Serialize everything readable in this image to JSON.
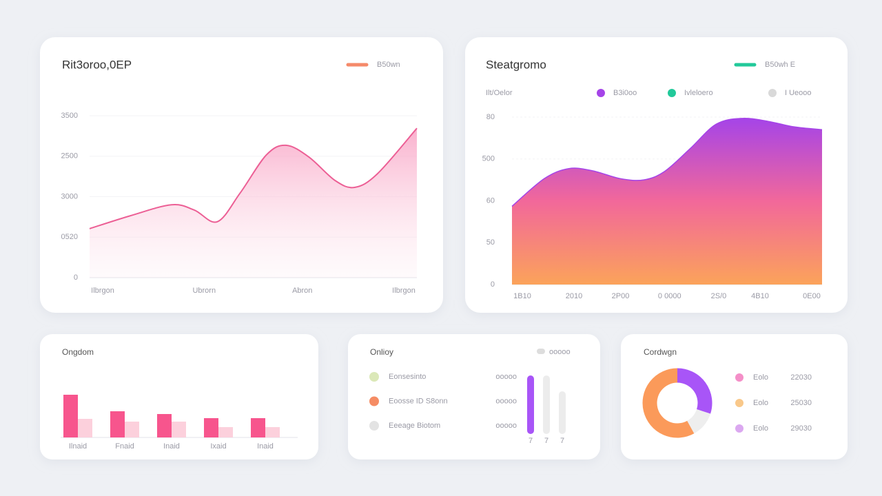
{
  "chart_data": [
    {
      "type": "line",
      "title": "Rit3oroo,0EP",
      "series": [
        {
          "name": "B50wn",
          "color": "#ec5f95",
          "legend_color": "#f58a6a",
          "values": [
            1210,
            1530,
            1800,
            1670,
            1380,
            2090,
            3030,
            3270,
            2980,
            2400,
            2230,
            2570,
            3690
          ]
        }
      ],
      "x": [
        0,
        1.25,
        2.5,
        3.2,
        3.9,
        4.6,
        5.4,
        6,
        6.7,
        7.5,
        8.1,
        8.8,
        10
      ],
      "xlim": [
        0,
        10
      ],
      "xticks": [
        {
          "value": 0.4,
          "label": "Ilbrgon"
        },
        {
          "value": 3.5,
          "label": "Ubrorn"
        },
        {
          "value": 6.5,
          "label": "Abron"
        },
        {
          "value": 9.6,
          "label": "Ilbrgon"
        }
      ],
      "ylim": [
        0,
        4000
      ],
      "yticks": [
        0,
        {
          "value": 1000,
          "label": "0520"
        },
        {
          "value": 2000,
          "label": "3000"
        },
        {
          "value": 3000,
          "label": "2500"
        },
        {
          "value": 4000,
          "label": "3500"
        }
      ]
    },
    {
      "type": "area",
      "title": "Steatgromo",
      "y_label": "Ilt/Oelor",
      "series": [
        {
          "name": "B50wh E",
          "color": "#22c99a",
          "values": [
            187,
            253,
            277,
            272,
            253,
            250,
            270,
            325,
            383,
            397,
            390,
            377,
            370
          ]
        }
      ],
      "gradient": [
        "#a544e8",
        "#f2689a",
        "#fba35a"
      ],
      "legend": [
        {
          "name": "B3i0oo",
          "color": "#a544e8"
        },
        {
          "name": "Ivleloero",
          "color": "#22c99a"
        },
        {
          "name": "I Ueooo",
          "color": "#d9d9d9"
        }
      ],
      "x": [
        0,
        1.25,
        2.2,
        3.1,
        4.2,
        5.1,
        5.9,
        6.9,
        7.9,
        8.9,
        9.9,
        10.9,
        12
      ],
      "xlim": [
        0,
        12
      ],
      "xticks": [
        {
          "value": 0.4,
          "label": "1B10"
        },
        {
          "value": 2.4,
          "label": "2010"
        },
        {
          "value": 4.2,
          "label": "2P00"
        },
        {
          "value": 6.1,
          "label": "0 0000"
        },
        {
          "value": 8.0,
          "label": "2S/0"
        },
        {
          "value": 9.6,
          "label": "4B10"
        },
        {
          "value": 11.6,
          "label": "0E00"
        }
      ],
      "ylim": [
        0,
        400
      ],
      "yticks": [
        0,
        {
          "value": 100,
          "label": "50"
        },
        {
          "value": 200,
          "label": "60"
        },
        {
          "value": 300,
          "label": "500"
        },
        {
          "value": 400,
          "label": "80"
        }
      ]
    },
    {
      "type": "grouped-bar",
      "title": "Ongdom",
      "categories": [
        "Ilnaid",
        "Fnaid",
        "Inaid",
        "Ixaid",
        "Inaid"
      ],
      "series": [
        {
          "color": "#f7558d",
          "values": [
            62,
            38,
            34,
            28,
            28
          ]
        },
        {
          "color": "#fcd0dc",
          "values": [
            27,
            23,
            23,
            15,
            15
          ]
        }
      ]
    },
    {
      "type": "bar",
      "title": "Onlioy",
      "toggle": "ooooo",
      "items": [
        {
          "label": "Eonsesinto",
          "value": "ooooo",
          "color": "#dbe8b8"
        },
        {
          "label": "Eoosse ID S8onn",
          "value": "ooooo",
          "color": "#f58c64"
        },
        {
          "label": "Eeeage Biotom",
          "value": "ooooo",
          "color": "#e3e3e3"
        }
      ],
      "categories": [
        "7",
        "7",
        "7"
      ],
      "values": [
        85,
        85,
        62
      ],
      "colors": [
        "#a855f7",
        "#ececec",
        "#ececec"
      ]
    },
    {
      "type": "donut",
      "title": "Cordwgn",
      "values": [
        30,
        12,
        58
      ],
      "colors": [
        "#a855f7",
        "#eeeeee",
        "#fb9a5a"
      ],
      "legend": [
        {
          "name": "Eolo",
          "value": 22030,
          "color": "#f48fc8"
        },
        {
          "name": "Eolo",
          "value": 25030,
          "color": "#f9c88a"
        },
        {
          "name": "Eolo",
          "value": 29030,
          "color": "#dba8f0"
        }
      ]
    }
  ]
}
